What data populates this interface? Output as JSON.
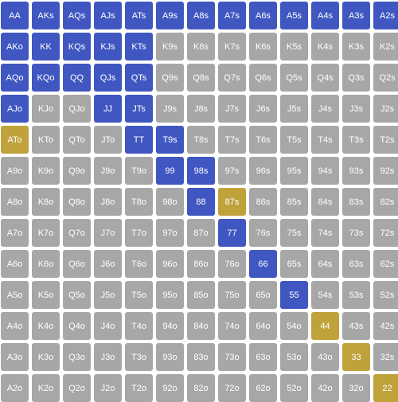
{
  "colors": {
    "raise": "#4057c1",
    "call": "#c0a23b",
    "fold": "#a7a7a7",
    "text": "#ffffff"
  },
  "grid": {
    "rows": [
      [
        {
          "hand": "AA",
          "action": "raise"
        },
        {
          "hand": "AKs",
          "action": "raise"
        },
        {
          "hand": "AQs",
          "action": "raise"
        },
        {
          "hand": "AJs",
          "action": "raise"
        },
        {
          "hand": "ATs",
          "action": "raise"
        },
        {
          "hand": "A9s",
          "action": "raise"
        },
        {
          "hand": "A8s",
          "action": "raise"
        },
        {
          "hand": "A7s",
          "action": "raise"
        },
        {
          "hand": "A6s",
          "action": "raise"
        },
        {
          "hand": "A5s",
          "action": "raise"
        },
        {
          "hand": "A4s",
          "action": "raise"
        },
        {
          "hand": "A3s",
          "action": "raise"
        },
        {
          "hand": "A2s",
          "action": "raise"
        }
      ],
      [
        {
          "hand": "AKo",
          "action": "raise"
        },
        {
          "hand": "KK",
          "action": "raise"
        },
        {
          "hand": "KQs",
          "action": "raise"
        },
        {
          "hand": "KJs",
          "action": "raise"
        },
        {
          "hand": "KTs",
          "action": "raise"
        },
        {
          "hand": "K9s",
          "action": "fold"
        },
        {
          "hand": "K8s",
          "action": "fold"
        },
        {
          "hand": "K7s",
          "action": "fold"
        },
        {
          "hand": "K6s",
          "action": "fold"
        },
        {
          "hand": "K5s",
          "action": "fold"
        },
        {
          "hand": "K4s",
          "action": "fold"
        },
        {
          "hand": "K3s",
          "action": "fold"
        },
        {
          "hand": "K2s",
          "action": "fold"
        }
      ],
      [
        {
          "hand": "AQo",
          "action": "raise"
        },
        {
          "hand": "KQo",
          "action": "raise"
        },
        {
          "hand": "QQ",
          "action": "raise"
        },
        {
          "hand": "QJs",
          "action": "raise"
        },
        {
          "hand": "QTs",
          "action": "raise"
        },
        {
          "hand": "Q9s",
          "action": "fold"
        },
        {
          "hand": "Q8s",
          "action": "fold"
        },
        {
          "hand": "Q7s",
          "action": "fold"
        },
        {
          "hand": "Q6s",
          "action": "fold"
        },
        {
          "hand": "Q5s",
          "action": "fold"
        },
        {
          "hand": "Q4s",
          "action": "fold"
        },
        {
          "hand": "Q3s",
          "action": "fold"
        },
        {
          "hand": "Q2s",
          "action": "fold"
        }
      ],
      [
        {
          "hand": "AJo",
          "action": "raise"
        },
        {
          "hand": "KJo",
          "action": "fold"
        },
        {
          "hand": "QJo",
          "action": "fold"
        },
        {
          "hand": "JJ",
          "action": "raise"
        },
        {
          "hand": "JTs",
          "action": "raise"
        },
        {
          "hand": "J9s",
          "action": "fold"
        },
        {
          "hand": "J8s",
          "action": "fold"
        },
        {
          "hand": "J7s",
          "action": "fold"
        },
        {
          "hand": "J6s",
          "action": "fold"
        },
        {
          "hand": "J5s",
          "action": "fold"
        },
        {
          "hand": "J4s",
          "action": "fold"
        },
        {
          "hand": "J3s",
          "action": "fold"
        },
        {
          "hand": "J2s",
          "action": "fold"
        }
      ],
      [
        {
          "hand": "ATo",
          "action": "call"
        },
        {
          "hand": "KTo",
          "action": "fold"
        },
        {
          "hand": "QTo",
          "action": "fold"
        },
        {
          "hand": "JTo",
          "action": "fold"
        },
        {
          "hand": "TT",
          "action": "raise"
        },
        {
          "hand": "T9s",
          "action": "raise"
        },
        {
          "hand": "T8s",
          "action": "fold"
        },
        {
          "hand": "T7s",
          "action": "fold"
        },
        {
          "hand": "T6s",
          "action": "fold"
        },
        {
          "hand": "T5s",
          "action": "fold"
        },
        {
          "hand": "T4s",
          "action": "fold"
        },
        {
          "hand": "T3s",
          "action": "fold"
        },
        {
          "hand": "T2s",
          "action": "fold"
        }
      ],
      [
        {
          "hand": "A9o",
          "action": "fold"
        },
        {
          "hand": "K9o",
          "action": "fold"
        },
        {
          "hand": "Q9o",
          "action": "fold"
        },
        {
          "hand": "J9o",
          "action": "fold"
        },
        {
          "hand": "T9o",
          "action": "fold"
        },
        {
          "hand": "99",
          "action": "raise"
        },
        {
          "hand": "98s",
          "action": "raise"
        },
        {
          "hand": "97s",
          "action": "fold"
        },
        {
          "hand": "96s",
          "action": "fold"
        },
        {
          "hand": "95s",
          "action": "fold"
        },
        {
          "hand": "94s",
          "action": "fold"
        },
        {
          "hand": "93s",
          "action": "fold"
        },
        {
          "hand": "92s",
          "action": "fold"
        }
      ],
      [
        {
          "hand": "A8o",
          "action": "fold"
        },
        {
          "hand": "K8o",
          "action": "fold"
        },
        {
          "hand": "Q8o",
          "action": "fold"
        },
        {
          "hand": "J8o",
          "action": "fold"
        },
        {
          "hand": "T8o",
          "action": "fold"
        },
        {
          "hand": "98o",
          "action": "fold"
        },
        {
          "hand": "88",
          "action": "raise"
        },
        {
          "hand": "87s",
          "action": "call"
        },
        {
          "hand": "86s",
          "action": "fold"
        },
        {
          "hand": "85s",
          "action": "fold"
        },
        {
          "hand": "84s",
          "action": "fold"
        },
        {
          "hand": "83s",
          "action": "fold"
        },
        {
          "hand": "82s",
          "action": "fold"
        }
      ],
      [
        {
          "hand": "A7o",
          "action": "fold"
        },
        {
          "hand": "K7o",
          "action": "fold"
        },
        {
          "hand": "Q7o",
          "action": "fold"
        },
        {
          "hand": "J7o",
          "action": "fold"
        },
        {
          "hand": "T7o",
          "action": "fold"
        },
        {
          "hand": "97o",
          "action": "fold"
        },
        {
          "hand": "87o",
          "action": "fold"
        },
        {
          "hand": "77",
          "action": "raise"
        },
        {
          "hand": "76s",
          "action": "fold"
        },
        {
          "hand": "75s",
          "action": "fold"
        },
        {
          "hand": "74s",
          "action": "fold"
        },
        {
          "hand": "73s",
          "action": "fold"
        },
        {
          "hand": "72s",
          "action": "fold"
        }
      ],
      [
        {
          "hand": "A6o",
          "action": "fold"
        },
        {
          "hand": "K6o",
          "action": "fold"
        },
        {
          "hand": "Q6o",
          "action": "fold"
        },
        {
          "hand": "J6o",
          "action": "fold"
        },
        {
          "hand": "T6o",
          "action": "fold"
        },
        {
          "hand": "96o",
          "action": "fold"
        },
        {
          "hand": "86o",
          "action": "fold"
        },
        {
          "hand": "76o",
          "action": "fold"
        },
        {
          "hand": "66",
          "action": "raise"
        },
        {
          "hand": "65s",
          "action": "fold"
        },
        {
          "hand": "64s",
          "action": "fold"
        },
        {
          "hand": "63s",
          "action": "fold"
        },
        {
          "hand": "62s",
          "action": "fold"
        }
      ],
      [
        {
          "hand": "A5o",
          "action": "fold"
        },
        {
          "hand": "K5o",
          "action": "fold"
        },
        {
          "hand": "Q5o",
          "action": "fold"
        },
        {
          "hand": "J5o",
          "action": "fold"
        },
        {
          "hand": "T5o",
          "action": "fold"
        },
        {
          "hand": "95o",
          "action": "fold"
        },
        {
          "hand": "85o",
          "action": "fold"
        },
        {
          "hand": "75o",
          "action": "fold"
        },
        {
          "hand": "65o",
          "action": "fold"
        },
        {
          "hand": "55",
          "action": "raise"
        },
        {
          "hand": "54s",
          "action": "fold"
        },
        {
          "hand": "53s",
          "action": "fold"
        },
        {
          "hand": "52s",
          "action": "fold"
        }
      ],
      [
        {
          "hand": "A4o",
          "action": "fold"
        },
        {
          "hand": "K4o",
          "action": "fold"
        },
        {
          "hand": "Q4o",
          "action": "fold"
        },
        {
          "hand": "J4o",
          "action": "fold"
        },
        {
          "hand": "T4o",
          "action": "fold"
        },
        {
          "hand": "94o",
          "action": "fold"
        },
        {
          "hand": "84o",
          "action": "fold"
        },
        {
          "hand": "74o",
          "action": "fold"
        },
        {
          "hand": "64o",
          "action": "fold"
        },
        {
          "hand": "54o",
          "action": "fold"
        },
        {
          "hand": "44",
          "action": "call"
        },
        {
          "hand": "43s",
          "action": "fold"
        },
        {
          "hand": "42s",
          "action": "fold"
        }
      ],
      [
        {
          "hand": "A3o",
          "action": "fold"
        },
        {
          "hand": "K3o",
          "action": "fold"
        },
        {
          "hand": "Q3o",
          "action": "fold"
        },
        {
          "hand": "J3o",
          "action": "fold"
        },
        {
          "hand": "T3o",
          "action": "fold"
        },
        {
          "hand": "93o",
          "action": "fold"
        },
        {
          "hand": "83o",
          "action": "fold"
        },
        {
          "hand": "73o",
          "action": "fold"
        },
        {
          "hand": "63o",
          "action": "fold"
        },
        {
          "hand": "53o",
          "action": "fold"
        },
        {
          "hand": "43o",
          "action": "fold"
        },
        {
          "hand": "33",
          "action": "call"
        },
        {
          "hand": "32s",
          "action": "fold"
        }
      ],
      [
        {
          "hand": "A2o",
          "action": "fold"
        },
        {
          "hand": "K2o",
          "action": "fold"
        },
        {
          "hand": "Q2o",
          "action": "fold"
        },
        {
          "hand": "J2o",
          "action": "fold"
        },
        {
          "hand": "T2o",
          "action": "fold"
        },
        {
          "hand": "92o",
          "action": "fold"
        },
        {
          "hand": "82o",
          "action": "fold"
        },
        {
          "hand": "72o",
          "action": "fold"
        },
        {
          "hand": "62o",
          "action": "fold"
        },
        {
          "hand": "52o",
          "action": "fold"
        },
        {
          "hand": "42o",
          "action": "fold"
        },
        {
          "hand": "32o",
          "action": "fold"
        },
        {
          "hand": "22",
          "action": "call"
        }
      ]
    ]
  }
}
